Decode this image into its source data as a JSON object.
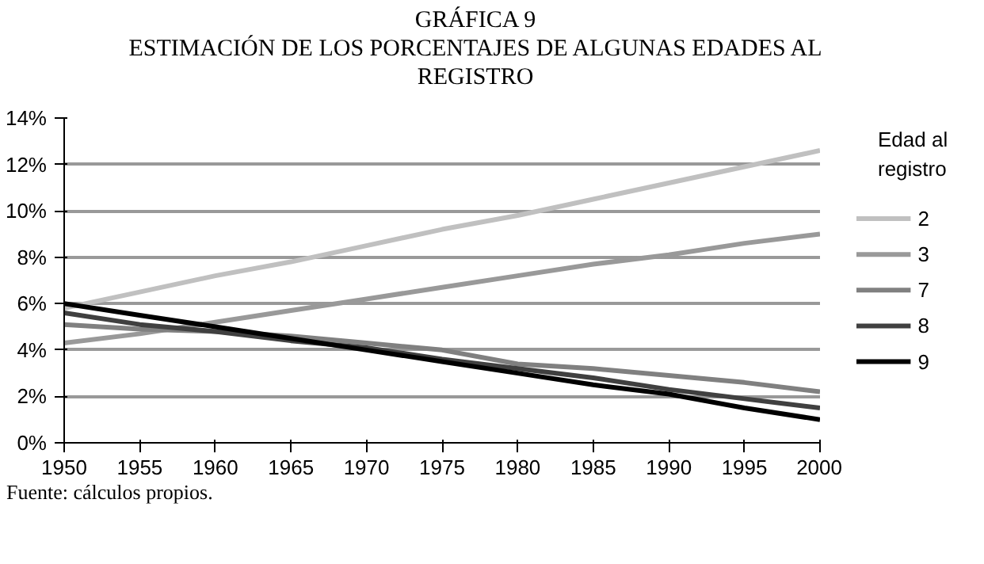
{
  "chart_data": {
    "type": "line",
    "title": "GRÁFICA 9",
    "subtitle": "ESTIMACIÓN DE LOS PORCENTAJES DE ALGUNAS EDADES AL REGISTRO",
    "x": [
      1950,
      1955,
      1960,
      1965,
      1970,
      1975,
      1980,
      1985,
      1990,
      1995,
      2000
    ],
    "series": [
      {
        "name": "2",
        "color": "#c0c0c0",
        "values": [
          5.8,
          6.5,
          7.2,
          7.8,
          8.5,
          9.2,
          9.8,
          10.5,
          11.2,
          11.9,
          12.6
        ]
      },
      {
        "name": "3",
        "color": "#999999",
        "values": [
          4.3,
          4.7,
          5.2,
          5.7,
          6.2,
          6.7,
          7.2,
          7.7,
          8.1,
          8.6,
          9.0
        ]
      },
      {
        "name": "7",
        "color": "#808080",
        "values": [
          5.1,
          4.9,
          4.8,
          4.6,
          4.3,
          4.0,
          3.4,
          3.2,
          2.9,
          2.6,
          2.2
        ]
      },
      {
        "name": "8",
        "color": "#404040",
        "values": [
          5.6,
          5.1,
          4.8,
          4.4,
          4.1,
          3.6,
          3.2,
          2.8,
          2.3,
          1.9,
          1.5
        ]
      },
      {
        "name": "9",
        "color": "#000000",
        "values": [
          6.0,
          5.5,
          5.0,
          4.5,
          4.0,
          3.5,
          3.0,
          2.5,
          2.1,
          1.5,
          1.0
        ]
      }
    ],
    "xlim": [
      1950,
      2000
    ],
    "xticks": [
      1950,
      1955,
      1960,
      1965,
      1970,
      1975,
      1980,
      1985,
      1990,
      1995,
      2000
    ],
    "ylim": [
      0,
      14
    ],
    "yticks": [
      {
        "value": 0,
        "label": "0%"
      },
      {
        "value": 2,
        "label": "2%"
      },
      {
        "value": 4,
        "label": "4%"
      },
      {
        "value": 6,
        "label": "6%"
      },
      {
        "value": 8,
        "label": "8%"
      },
      {
        "value": 10,
        "label": "10%"
      },
      {
        "value": 12,
        "label": "12%"
      },
      {
        "value": 14,
        "label": "14%"
      }
    ],
    "grid": "y",
    "legend": "right",
    "legend_title": "Edad al registro",
    "marker": "none",
    "line_style": "solid",
    "annotations": [
      "Fuente: cálculos propios."
    ]
  }
}
